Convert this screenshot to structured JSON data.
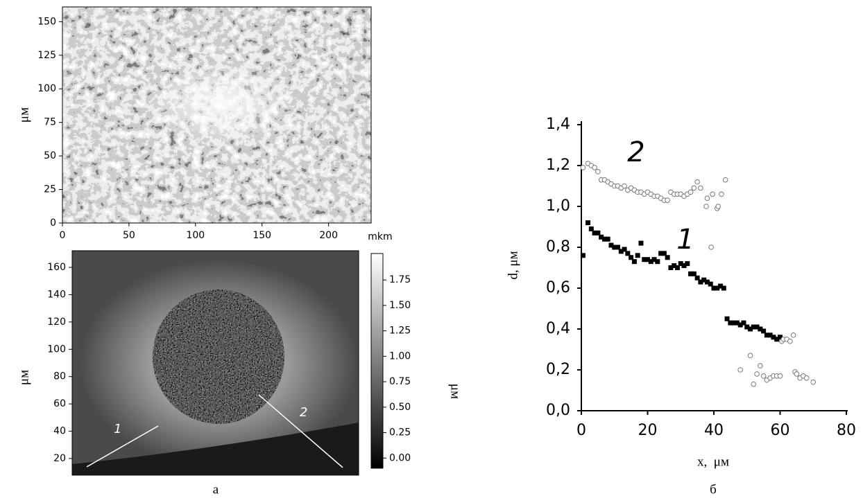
{
  "chart_data": [
    {
      "type": "image",
      "ylabel": "μм",
      "xunit": "mkm",
      "xlim": [
        0,
        232
      ],
      "xticks": [
        0,
        50,
        100,
        150,
        200
      ],
      "ylim": [
        0,
        161
      ],
      "yticks": [
        0,
        25,
        50,
        75,
        100,
        125,
        150
      ]
    },
    {
      "type": "heatmap",
      "ylabel": "μм",
      "colorbar_label": "μм",
      "caption": "а",
      "ylim": [
        7.8,
        172.2
      ],
      "yticks": [
        20,
        40,
        60,
        80,
        100,
        120,
        140,
        160
      ],
      "clim": [
        -0.1,
        2.01
      ],
      "cticks": [
        {
          "value": 0,
          "label": "0.00"
        },
        {
          "value": 0.25,
          "label": "0.25"
        },
        {
          "value": 0.5,
          "label": "0.50"
        },
        {
          "value": 0.75,
          "label": "0.75"
        },
        {
          "value": 1,
          "label": "1.00"
        },
        {
          "value": 1.25,
          "label": "1.25"
        },
        {
          "value": 1.5,
          "label": "1.50"
        },
        {
          "value": 1.75,
          "label": "1.75"
        }
      ],
      "annotations": [
        "1",
        "2"
      ]
    },
    {
      "type": "scatter",
      "xlabel": "x,  μм",
      "ylabel": "d, μм",
      "caption": "б",
      "xlim": [
        0,
        80
      ],
      "xticks": [
        0,
        20,
        40,
        60,
        80
      ],
      "ylim": [
        0,
        1.4
      ],
      "yticks": [
        {
          "value": 0,
          "label": "0,0"
        },
        {
          "value": 0.2,
          "label": "0,2"
        },
        {
          "value": 0.4,
          "label": "0,4"
        },
        {
          "value": 0.6,
          "label": "0,6"
        },
        {
          "value": 0.8,
          "label": "0,8"
        },
        {
          "value": 1.0,
          "label": "1,0"
        },
        {
          "value": 1.2,
          "label": "1,2"
        },
        {
          "value": 1.4,
          "label": "1,4"
        }
      ],
      "series": [
        {
          "name": "1",
          "marker": "square",
          "color": "#000000",
          "x": [
            0.5,
            2,
            3,
            4,
            5,
            6,
            7,
            8,
            9,
            10,
            11,
            12,
            13,
            14,
            15,
            16,
            17,
            18,
            19,
            20,
            21,
            22,
            23,
            24,
            25,
            26,
            27,
            28,
            29,
            30,
            31,
            32,
            33,
            34,
            35,
            36,
            37,
            38,
            39,
            40,
            41,
            42,
            43,
            44,
            45,
            46,
            47,
            48,
            49,
            50,
            51,
            52,
            53,
            54,
            55,
            56,
            57,
            58,
            59,
            60
          ],
          "values": [
            0.76,
            0.92,
            0.89,
            0.87,
            0.87,
            0.85,
            0.84,
            0.84,
            0.81,
            0.8,
            0.8,
            0.78,
            0.79,
            0.77,
            0.75,
            0.73,
            0.76,
            0.82,
            0.74,
            0.74,
            0.73,
            0.74,
            0.73,
            0.77,
            0.77,
            0.75,
            0.7,
            0.71,
            0.7,
            0.72,
            0.71,
            0.72,
            0.67,
            0.67,
            0.65,
            0.63,
            0.64,
            0.63,
            0.62,
            0.6,
            0.6,
            0.61,
            0.6,
            0.45,
            0.43,
            0.43,
            0.43,
            0.42,
            0.43,
            0.41,
            0.4,
            0.41,
            0.41,
            0.4,
            0.39,
            0.37,
            0.37,
            0.36,
            0.35,
            0.36
          ]
        },
        {
          "name": "2",
          "marker": "circle",
          "color": "#777777",
          "x": [
            0.5,
            2,
            3,
            4,
            5,
            6,
            7,
            8,
            9,
            10,
            11,
            12,
            13,
            14,
            15,
            16,
            17,
            18,
            19,
            20,
            21,
            22,
            23,
            24,
            25,
            26,
            27,
            28,
            29,
            30,
            31,
            32,
            33,
            34,
            35,
            36,
            37.7,
            38,
            39.2,
            39.6,
            41,
            41.3,
            42.3,
            43.5,
            48,
            51,
            52,
            53,
            54,
            55,
            56,
            57,
            58,
            59,
            60,
            60.5,
            61,
            62,
            63,
            64,
            64.5,
            65,
            66,
            67,
            68,
            70
          ],
          "values": [
            1.19,
            1.21,
            1.2,
            1.19,
            1.17,
            1.13,
            1.13,
            1.12,
            1.11,
            1.1,
            1.1,
            1.09,
            1.1,
            1.08,
            1.09,
            1.08,
            1.07,
            1.07,
            1.06,
            1.07,
            1.06,
            1.05,
            1.05,
            1.04,
            1.03,
            1.03,
            1.07,
            1.06,
            1.06,
            1.06,
            1.05,
            1.06,
            1.07,
            1.09,
            1.12,
            1.09,
            1.0,
            1.04,
            0.8,
            1.06,
            0.99,
            1.0,
            1.06,
            1.13,
            0.2,
            0.27,
            0.13,
            0.18,
            0.22,
            0.17,
            0.15,
            0.16,
            0.17,
            0.17,
            0.17,
            0.34,
            0.35,
            0.35,
            0.34,
            0.37,
            0.19,
            0.18,
            0.16,
            0.17,
            0.16,
            0.14
          ]
        }
      ]
    }
  ]
}
